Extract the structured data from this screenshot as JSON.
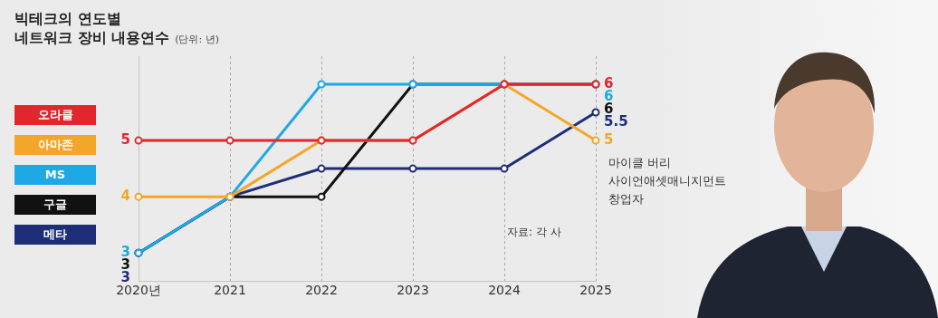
{
  "chart_data": {
    "type": "line",
    "title": "빅테크의 연도별\n네트워크 장비 내용연수",
    "subtitle": "(단위: 년)",
    "categories": [
      "2020년",
      "2021",
      "2022",
      "2023",
      "2024",
      "2025"
    ],
    "series": [
      {
        "name": "오라클",
        "color": "#e3262e",
        "values": [
          5,
          5,
          5,
          5,
          6,
          6
        ],
        "value_labels": [
          "5",
          null,
          null,
          null,
          null,
          "6"
        ]
      },
      {
        "name": "아마존",
        "color": "#f4a62a",
        "values": [
          4,
          4,
          5,
          5,
          6,
          5
        ],
        "value_labels": [
          "4",
          null,
          null,
          null,
          null,
          "5"
        ]
      },
      {
        "name": "MS",
        "color": "#1ea8e6",
        "values": [
          3,
          4,
          6,
          6,
          6,
          6
        ],
        "value_labels": [
          "3",
          null,
          null,
          null,
          null,
          "6"
        ]
      },
      {
        "name": "구글",
        "color": "#111111",
        "values": [
          3,
          4,
          4,
          6,
          6,
          6
        ],
        "value_labels": [
          "3",
          null,
          null,
          null,
          null,
          "6"
        ]
      },
      {
        "name": "메타",
        "color": "#1e2d78",
        "values": [
          3,
          4,
          4.5,
          4.5,
          4.5,
          5.5
        ],
        "value_labels": [
          "3",
          null,
          null,
          null,
          null,
          "5.5"
        ]
      }
    ],
    "ylim": [
      2.5,
      6.5
    ],
    "grid": true,
    "legend": "left",
    "data_labels": true,
    "tick_labels": "x",
    "marker": "circle",
    "annotations": [
      "자료: 각 사"
    ],
    "photo_caption": [
      "마이클 버리",
      "사이언애셋매니지먼트",
      "창업자"
    ]
  }
}
